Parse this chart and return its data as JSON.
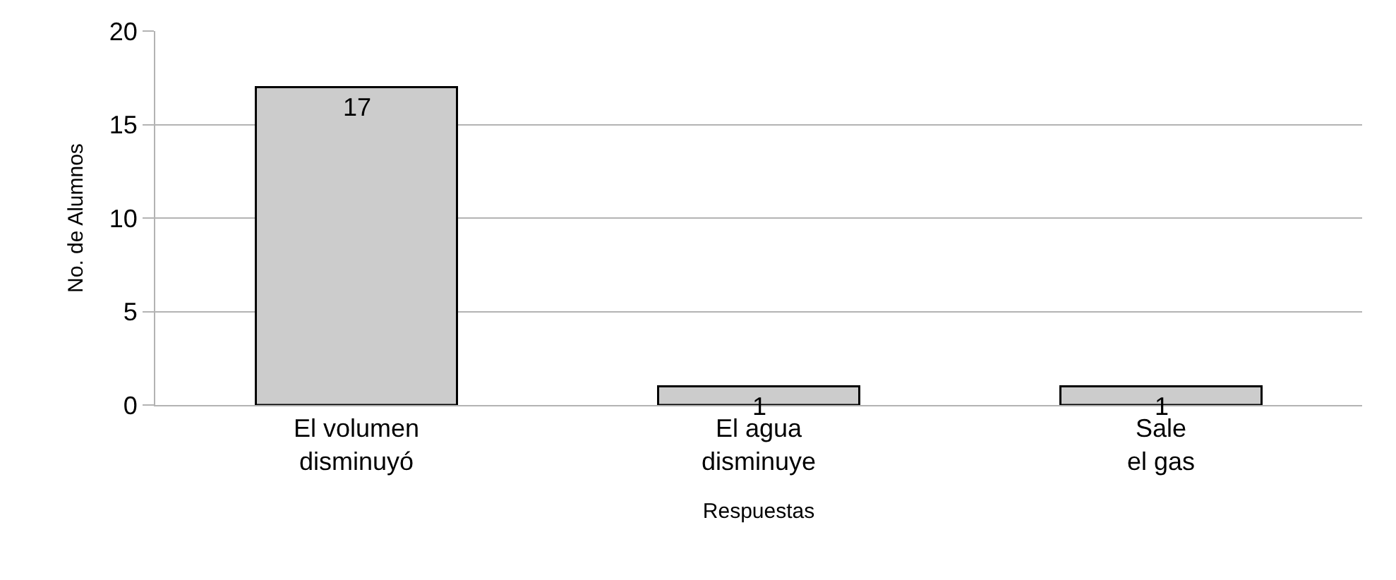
{
  "chart_data": {
    "type": "bar",
    "xlabel": "Respuestas",
    "ylabel": "No. de Alumnos",
    "categories": [
      "El volumen\ndisminuyó",
      "El agua\ndisminuye",
      "Sale\nel gas"
    ],
    "values": [
      17,
      1,
      1
    ],
    "color": "#cccccc",
    "ylim": [
      0,
      20
    ],
    "yticks": [
      0,
      5,
      10,
      15,
      20
    ],
    "grid": "y",
    "legend": false,
    "data_labels": true
  }
}
